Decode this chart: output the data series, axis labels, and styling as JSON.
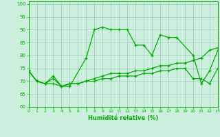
{
  "x_main": [
    0,
    1,
    2,
    3,
    4,
    5,
    7,
    8,
    9,
    10,
    11,
    12,
    13,
    14,
    15,
    16,
    17,
    18,
    20,
    21,
    22,
    23
  ],
  "y_main": [
    74,
    70,
    69,
    72,
    68,
    68,
    79,
    90,
    91,
    90,
    90,
    90,
    84,
    84,
    80,
    88,
    87,
    87,
    80,
    69,
    74,
    82
  ],
  "x_line2": [
    0,
    1,
    2,
    3,
    4,
    5,
    6,
    7,
    8,
    9,
    10,
    11,
    12,
    13,
    14,
    15,
    16,
    17,
    18,
    19,
    20,
    21,
    22,
    23
  ],
  "y_line2": [
    74,
    70,
    69,
    71,
    68,
    69,
    69,
    70,
    71,
    72,
    73,
    73,
    73,
    74,
    74,
    75,
    76,
    76,
    77,
    77,
    78,
    79,
    82,
    83
  ],
  "x_line3": [
    0,
    1,
    2,
    3,
    4,
    5,
    6,
    7,
    8,
    9,
    10,
    11,
    12,
    13,
    14,
    15,
    16,
    17,
    18,
    19,
    20,
    21,
    22,
    23
  ],
  "y_line3": [
    74,
    70,
    69,
    69,
    68,
    69,
    69,
    70,
    70,
    71,
    71,
    72,
    72,
    72,
    73,
    73,
    74,
    74,
    75,
    75,
    71,
    71,
    69,
    75
  ],
  "line_color": "#00aa00",
  "bg_color": "#cceedd",
  "grid_color": "#99ccbb",
  "xlabel": "Humidité relative (%)",
  "ylabel_ticks": [
    60,
    65,
    70,
    75,
    80,
    85,
    90,
    95,
    100
  ],
  "xlim": [
    0,
    23
  ],
  "ylim": [
    60,
    101
  ]
}
